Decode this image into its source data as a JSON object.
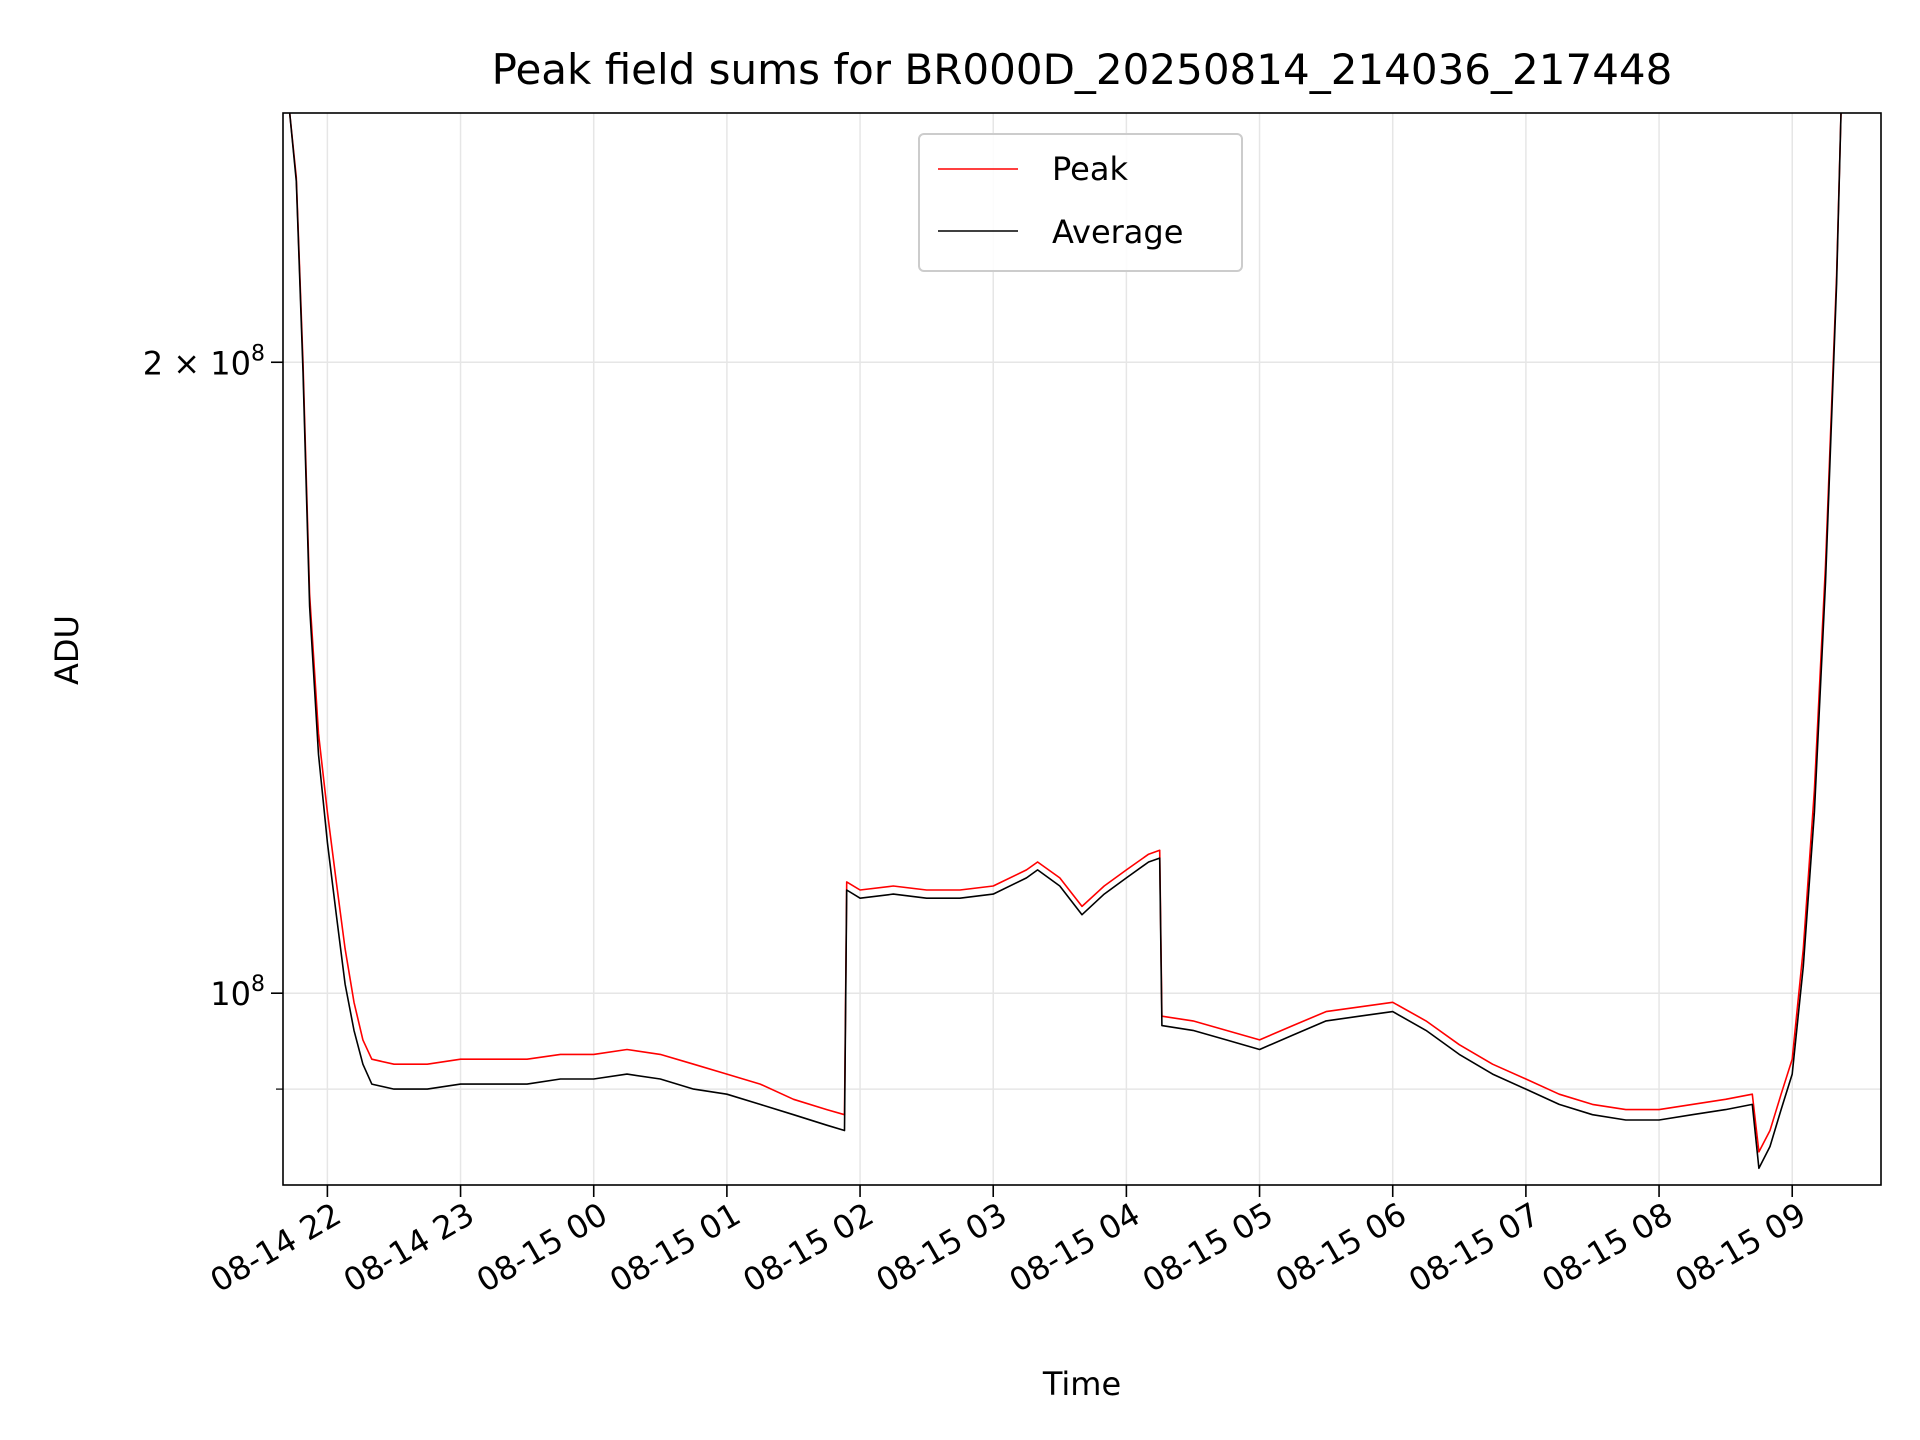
{
  "chart_data": {
    "type": "line",
    "title": "Peak field sums for BR000D_20250814_214036_217448",
    "xlabel": "Time",
    "ylabel": "ADU",
    "yscale": "log",
    "ylim": [
      81000000,
      263000000
    ],
    "xlim": [
      "2025-08-14 21:40",
      "2025-08-15 09:40"
    ],
    "x_ticks": [
      "08-14 22",
      "08-14 23",
      "08-15 00",
      "08-15 01",
      "08-15 02",
      "08-15 03",
      "08-15 04",
      "08-15 05",
      "08-15 06",
      "08-15 07",
      "08-15 08",
      "08-15 09"
    ],
    "y_ticks": [
      {
        "label_base": "2 × 10",
        "label_exp": "8",
        "value": 200000000
      },
      {
        "label_base": "10",
        "label_exp": "8",
        "value": 100000000
      }
    ],
    "y_minor_ticks": [
      90000000
    ],
    "grid": true,
    "legend_position": "upper center",
    "series": [
      {
        "name": "Peak",
        "color": "#ff0000",
        "x": [
          "2025-08-14 21:43",
          "2025-08-14 21:46",
          "2025-08-14 21:49",
          "2025-08-14 21:52",
          "2025-08-14 21:56",
          "2025-08-14 22:00",
          "2025-08-14 22:04",
          "2025-08-14 22:08",
          "2025-08-14 22:12",
          "2025-08-14 22:16",
          "2025-08-14 22:20",
          "2025-08-14 22:30",
          "2025-08-14 22:45",
          "2025-08-14 23:00",
          "2025-08-14 23:15",
          "2025-08-14 23:30",
          "2025-08-14 23:45",
          "2025-08-15 00:00",
          "2025-08-15 00:15",
          "2025-08-15 00:30",
          "2025-08-15 00:45",
          "2025-08-15 01:00",
          "2025-08-15 01:15",
          "2025-08-15 01:30",
          "2025-08-15 01:45",
          "2025-08-15 01:53",
          "2025-08-15 01:54",
          "2025-08-15 02:00",
          "2025-08-15 02:15",
          "2025-08-15 02:30",
          "2025-08-15 02:45",
          "2025-08-15 03:00",
          "2025-08-15 03:15",
          "2025-08-15 03:20",
          "2025-08-15 03:30",
          "2025-08-15 03:40",
          "2025-08-15 03:50",
          "2025-08-15 04:00",
          "2025-08-15 04:10",
          "2025-08-15 04:15",
          "2025-08-15 04:16",
          "2025-08-15 04:30",
          "2025-08-15 04:45",
          "2025-08-15 05:00",
          "2025-08-15 05:15",
          "2025-08-15 05:30",
          "2025-08-15 05:45",
          "2025-08-15 06:00",
          "2025-08-15 06:15",
          "2025-08-15 06:30",
          "2025-08-15 06:45",
          "2025-08-15 07:00",
          "2025-08-15 07:15",
          "2025-08-15 07:30",
          "2025-08-15 07:45",
          "2025-08-15 08:00",
          "2025-08-15 08:15",
          "2025-08-15 08:30",
          "2025-08-15 08:42",
          "2025-08-15 08:45",
          "2025-08-15 08:50",
          "2025-08-15 08:55",
          "2025-08-15 09:00",
          "2025-08-15 09:05",
          "2025-08-15 09:10",
          "2025-08-15 09:15",
          "2025-08-15 09:20",
          "2025-08-15 09:22"
        ],
        "y": [
          263000000,
          245000000,
          200000000,
          155000000,
          133000000,
          122000000,
          113000000,
          105000000,
          99000000,
          95000000,
          93000000,
          92500000,
          92500000,
          93000000,
          93000000,
          93000000,
          93500000,
          93500000,
          94000000,
          93500000,
          92500000,
          91500000,
          90500000,
          89000000,
          88000000,
          87500000,
          113000000,
          112000000,
          112500000,
          112000000,
          112000000,
          112500000,
          114500000,
          115500000,
          113500000,
          110000000,
          112500000,
          114500000,
          116500000,
          117000000,
          97500000,
          97000000,
          96000000,
          95000000,
          96500000,
          98000000,
          98500000,
          99000000,
          97000000,
          94500000,
          92500000,
          91000000,
          89500000,
          88500000,
          88000000,
          88000000,
          88500000,
          89000000,
          89500000,
          84000000,
          86000000,
          89500000,
          93000000,
          105000000,
          125000000,
          160000000,
          220000000,
          263000000
        ]
      },
      {
        "name": "Average",
        "color": "#000000",
        "x": [
          "2025-08-14 21:43",
          "2025-08-14 21:46",
          "2025-08-14 21:49",
          "2025-08-14 21:52",
          "2025-08-14 21:56",
          "2025-08-14 22:00",
          "2025-08-14 22:04",
          "2025-08-14 22:08",
          "2025-08-14 22:12",
          "2025-08-14 22:16",
          "2025-08-14 22:20",
          "2025-08-14 22:30",
          "2025-08-14 22:45",
          "2025-08-14 23:00",
          "2025-08-14 23:15",
          "2025-08-14 23:30",
          "2025-08-14 23:45",
          "2025-08-15 00:00",
          "2025-08-15 00:15",
          "2025-08-15 00:30",
          "2025-08-15 00:45",
          "2025-08-15 01:00",
          "2025-08-15 01:15",
          "2025-08-15 01:30",
          "2025-08-15 01:45",
          "2025-08-15 01:53",
          "2025-08-15 01:54",
          "2025-08-15 02:00",
          "2025-08-15 02:15",
          "2025-08-15 02:30",
          "2025-08-15 02:45",
          "2025-08-15 03:00",
          "2025-08-15 03:15",
          "2025-08-15 03:20",
          "2025-08-15 03:30",
          "2025-08-15 03:40",
          "2025-08-15 03:50",
          "2025-08-15 04:00",
          "2025-08-15 04:10",
          "2025-08-15 04:15",
          "2025-08-15 04:16",
          "2025-08-15 04:30",
          "2025-08-15 04:45",
          "2025-08-15 05:00",
          "2025-08-15 05:15",
          "2025-08-15 05:30",
          "2025-08-15 05:45",
          "2025-08-15 06:00",
          "2025-08-15 06:15",
          "2025-08-15 06:30",
          "2025-08-15 06:45",
          "2025-08-15 07:00",
          "2025-08-15 07:15",
          "2025-08-15 07:30",
          "2025-08-15 07:45",
          "2025-08-15 08:00",
          "2025-08-15 08:15",
          "2025-08-15 08:30",
          "2025-08-15 08:42",
          "2025-08-15 08:45",
          "2025-08-15 08:50",
          "2025-08-15 08:55",
          "2025-08-15 09:00",
          "2025-08-15 09:05",
          "2025-08-15 09:10",
          "2025-08-15 09:15",
          "2025-08-15 09:20",
          "2025-08-15 09:22"
        ],
        "y": [
          263000000,
          244000000,
          198000000,
          153000000,
          130000000,
          118000000,
          109000000,
          101000000,
          96000000,
          92500000,
          90500000,
          90000000,
          90000000,
          90500000,
          90500000,
          90500000,
          91000000,
          91000000,
          91500000,
          91000000,
          90000000,
          89500000,
          88500000,
          87500000,
          86500000,
          86000000,
          112000000,
          111000000,
          111500000,
          111000000,
          111000000,
          111500000,
          113500000,
          114500000,
          112500000,
          109000000,
          111500000,
          113500000,
          115500000,
          116000000,
          96500000,
          96000000,
          95000000,
          94000000,
          95500000,
          97000000,
          97500000,
          98000000,
          96000000,
          93500000,
          91500000,
          90000000,
          88500000,
          87500000,
          87000000,
          87000000,
          87500000,
          88000000,
          88500000,
          82500000,
          84500000,
          88000000,
          91500000,
          103000000,
          122000000,
          157000000,
          218000000,
          263000000
        ]
      }
    ]
  }
}
